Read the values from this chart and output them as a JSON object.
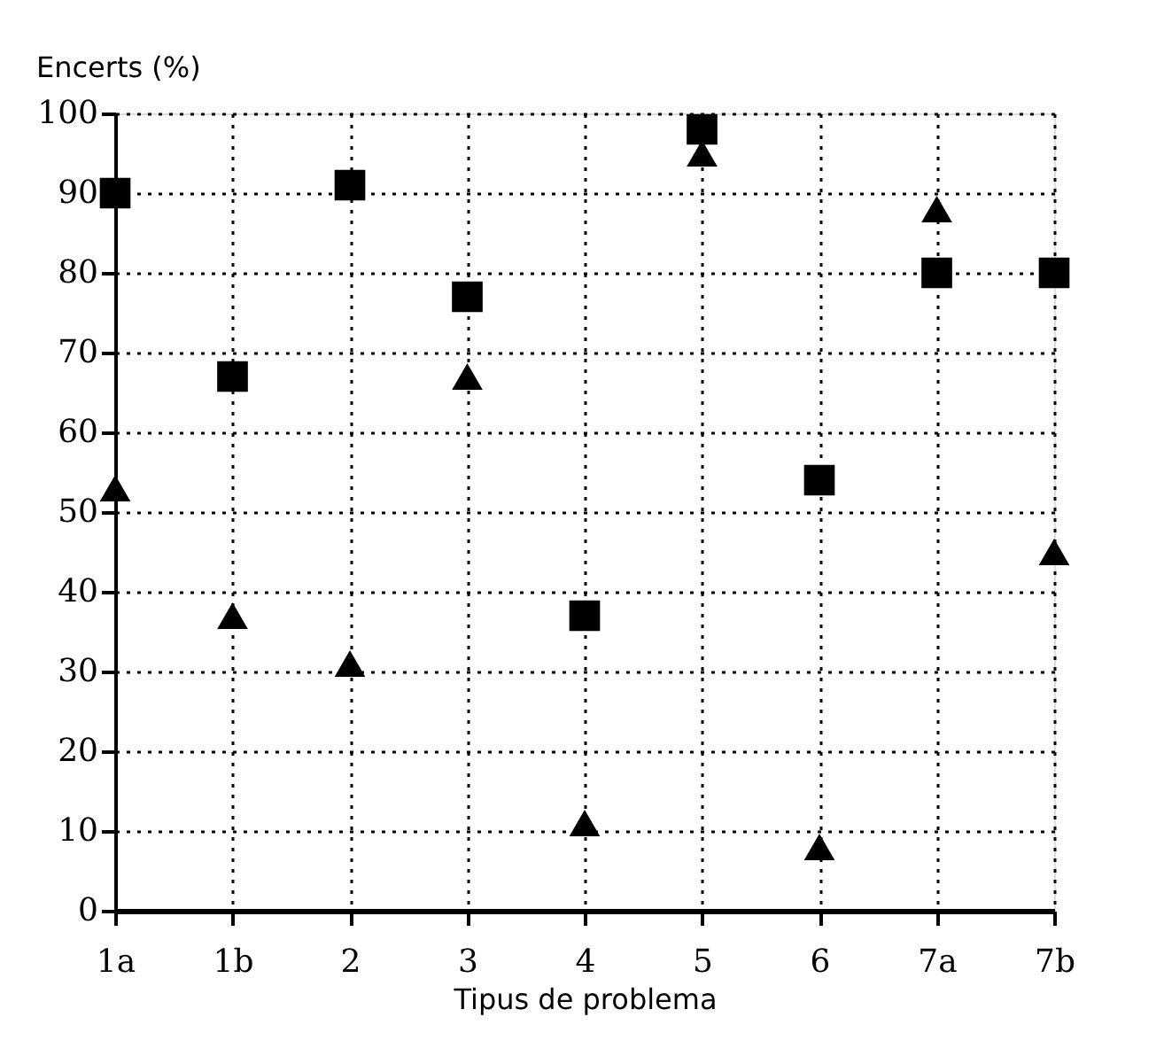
{
  "chart_data": {
    "type": "scatter",
    "xlabel": "Tipus de problema",
    "ylabel": "Encerts (%)",
    "categories": [
      "1a",
      "1b",
      "2",
      "3",
      "4",
      "5",
      "6",
      "7a",
      "7b"
    ],
    "series": [
      {
        "color": "#000000",
        "marker": "square",
        "values": [
          90,
          67,
          91,
          77,
          37,
          98,
          54,
          80,
          80
        ]
      },
      {
        "color": "#000000",
        "marker": "triangle",
        "values": [
          53,
          37,
          31,
          67,
          11,
          95,
          8,
          88,
          45
        ]
      }
    ],
    "ylim": [
      0,
      100
    ],
    "yticks": [
      0,
      10,
      20,
      30,
      40,
      50,
      60,
      70,
      80,
      90,
      100
    ],
    "grid": true,
    "line_style": "dotted"
  }
}
